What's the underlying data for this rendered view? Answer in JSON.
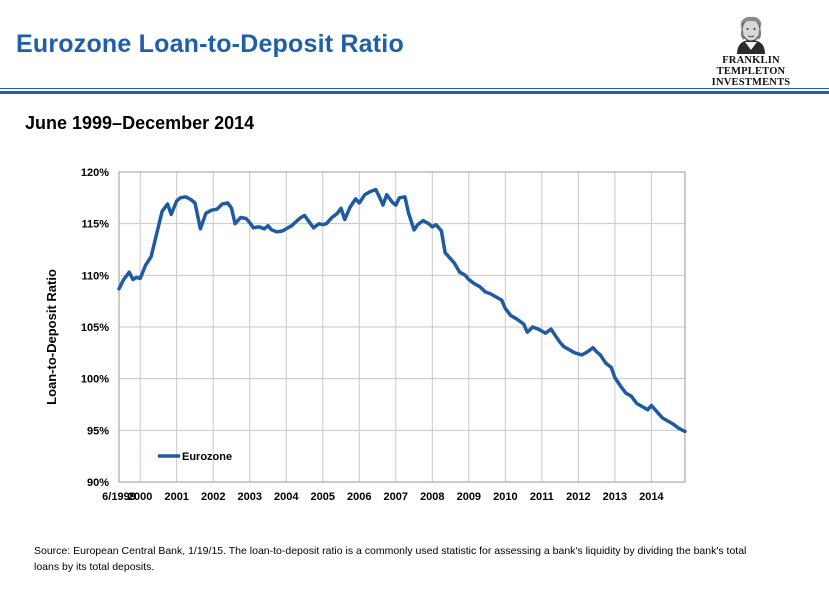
{
  "header": {
    "title": "Eurozone Loan-to-Deposit Ratio",
    "brand_line1": "FRANKLIN TEMPLETON",
    "brand_line2": "INVESTMENTS"
  },
  "subtitle": "June 1999–December 2014",
  "footer": {
    "source": "Source: European Central Bank, 1/19/15. The loan-to-deposit ratio is a commonly used statistic for assessing a bank's liquidity by dividing the bank's total loans by its total deposits."
  },
  "colors": {
    "title": "#1f5fa8",
    "series": "#1f5ba0",
    "grid": "#c8c8c8"
  },
  "chart_data": {
    "type": "line",
    "title": "",
    "xlabel": "",
    "ylabel": "Loan-to-Deposit Ratio",
    "ylim": [
      90,
      120
    ],
    "xlim": [
      1999.42,
      2014.92
    ],
    "yticks": [
      90,
      95,
      100,
      105,
      110,
      115,
      120
    ],
    "ytick_labels": [
      "90%",
      "95%",
      "100%",
      "105%",
      "110%",
      "115%",
      "120%"
    ],
    "xticks": [
      1999.42,
      2000,
      2001,
      2002,
      2003,
      2004,
      2005,
      2006,
      2007,
      2008,
      2009,
      2010,
      2011,
      2012,
      2013,
      2014
    ],
    "xtick_labels": [
      "6/1999",
      "2000",
      "2001",
      "2002",
      "2003",
      "2004",
      "2005",
      "2006",
      "2007",
      "2008",
      "2009",
      "2010",
      "2011",
      "2012",
      "2013",
      "2014"
    ],
    "grid": true,
    "legend": "bottom-left, inside plot",
    "series": [
      {
        "name": "Eurozone",
        "x": [
          1999.42,
          1999.55,
          1999.7,
          1999.8,
          1999.9,
          2000.0,
          2000.15,
          2000.3,
          2000.45,
          2000.6,
          2000.75,
          2000.85,
          2001.0,
          2001.1,
          2001.25,
          2001.4,
          2001.5,
          2001.65,
          2001.8,
          2001.95,
          2002.1,
          2002.25,
          2002.4,
          2002.5,
          2002.6,
          2002.75,
          2002.9,
          2003.0,
          2003.1,
          2003.25,
          2003.4,
          2003.5,
          2003.6,
          2003.75,
          2003.9,
          2004.0,
          2004.15,
          2004.3,
          2004.4,
          2004.5,
          2004.6,
          2004.75,
          2004.9,
          2005.0,
          2005.1,
          2005.25,
          2005.4,
          2005.5,
          2005.6,
          2005.75,
          2005.9,
          2006.0,
          2006.15,
          2006.3,
          2006.45,
          2006.55,
          2006.65,
          2006.75,
          2006.9,
          2007.0,
          2007.1,
          2007.25,
          2007.35,
          2007.5,
          2007.6,
          2007.75,
          2007.9,
          2008.0,
          2008.1,
          2008.25,
          2008.35,
          2008.5,
          2008.6,
          2008.75,
          2008.9,
          2009.0,
          2009.15,
          2009.3,
          2009.45,
          2009.6,
          2009.75,
          2009.9,
          2010.0,
          2010.15,
          2010.3,
          2010.5,
          2010.6,
          2010.75,
          2010.9,
          2011.0,
          2011.1,
          2011.25,
          2011.4,
          2011.5,
          2011.6,
          2011.75,
          2011.9,
          2012.0,
          2012.1,
          2012.25,
          2012.4,
          2012.5,
          2012.6,
          2012.75,
          2012.9,
          2013.0,
          2013.15,
          2013.3,
          2013.45,
          2013.6,
          2013.75,
          2013.9,
          2014.0,
          2014.15,
          2014.3,
          2014.45,
          2014.6,
          2014.75,
          2014.92
        ],
        "values": [
          108.7,
          109.6,
          110.3,
          109.6,
          109.8,
          109.7,
          111.0,
          111.8,
          114.0,
          116.2,
          116.9,
          115.9,
          117.2,
          117.5,
          117.6,
          117.3,
          117.0,
          114.5,
          116.0,
          116.3,
          116.4,
          116.9,
          117.0,
          116.5,
          115.0,
          115.6,
          115.5,
          115.1,
          114.6,
          114.7,
          114.5,
          114.8,
          114.4,
          114.2,
          114.3,
          114.5,
          114.8,
          115.3,
          115.6,
          115.8,
          115.3,
          114.6,
          115.0,
          114.9,
          115.0,
          115.6,
          116.0,
          116.5,
          115.4,
          116.6,
          117.4,
          117.0,
          117.8,
          118.1,
          118.3,
          117.6,
          116.8,
          117.8,
          117.1,
          116.8,
          117.5,
          117.6,
          116.0,
          114.4,
          114.9,
          115.3,
          115.0,
          114.7,
          114.9,
          114.3,
          112.2,
          111.6,
          111.2,
          110.3,
          110.0,
          109.6,
          109.2,
          108.9,
          108.4,
          108.2,
          107.9,
          107.6,
          106.8,
          106.1,
          105.8,
          105.3,
          104.5,
          105.0,
          104.8,
          104.6,
          104.4,
          104.8,
          104.0,
          103.5,
          103.1,
          102.8,
          102.5,
          102.4,
          102.3,
          102.6,
          103.0,
          102.6,
          102.3,
          101.5,
          101.1,
          100.1,
          99.3,
          98.6,
          98.3,
          97.6,
          97.3,
          97.0,
          97.4,
          96.8,
          96.2,
          95.9,
          95.6,
          95.2,
          94.9
        ]
      }
    ]
  }
}
